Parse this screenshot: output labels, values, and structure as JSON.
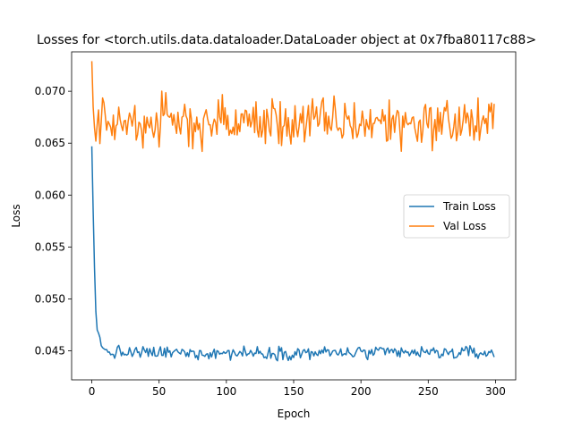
{
  "chart_data": {
    "type": "line",
    "title": "Losses for <torch.utils.data.dataloader.DataLoader object at 0x7fba80117c88>",
    "xlabel": "Epoch",
    "ylabel": "Loss",
    "xlim": [
      -15,
      315
    ],
    "ylim": [
      0.0422,
      0.0738
    ],
    "xticks": [
      0,
      50,
      100,
      150,
      200,
      250,
      300
    ],
    "yticks": [
      0.045,
      0.05,
      0.055,
      0.06,
      0.065,
      0.07
    ],
    "ytick_labels": [
      "0.045",
      "0.050",
      "0.055",
      "0.060",
      "0.065",
      "0.070"
    ],
    "legend_position": "center-right",
    "series": [
      {
        "name": "Train Loss",
        "color": "#1f77b4",
        "head": [
          0.0647,
          0.0585,
          0.053,
          0.0488,
          0.047,
          0.0467,
          0.0463,
          0.0455,
          0.0453,
          0.0452,
          0.0451
        ],
        "count": 300,
        "typical": 0.0448,
        "jitter": 0.00045,
        "min": 0.0434,
        "max": 0.0457
      },
      {
        "name": "Val Loss",
        "color": "#ff7f0e",
        "head": [
          0.0729,
          0.0685,
          0.0665,
          0.0652,
          0.0668,
          0.0682
        ],
        "count": 300,
        "typical": 0.067,
        "jitter": 0.0017,
        "min": 0.0627,
        "max": 0.0705
      }
    ]
  }
}
